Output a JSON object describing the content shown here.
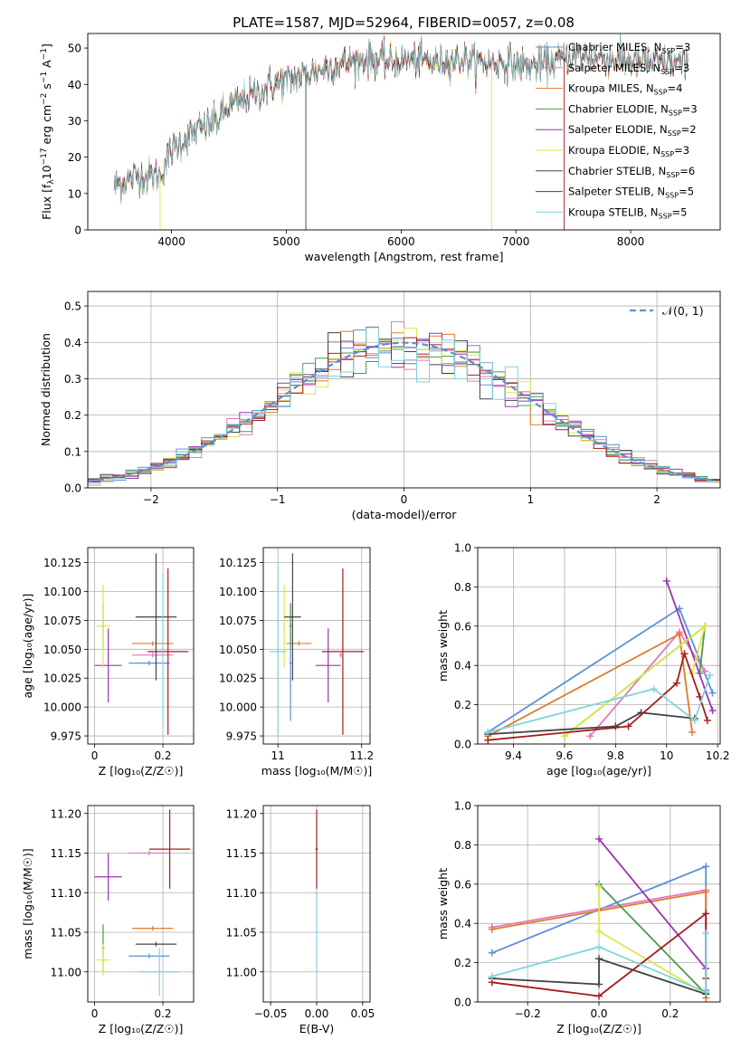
{
  "figure_title": "PLATE=1587, MJD=52964, FIBERID=0057, z=0.08",
  "colors": {
    "chabrier_miles": "#5b8fd9",
    "salpeter_miles": "#e377c2",
    "kroupa_miles": "#e07b2a",
    "chabrier_elodie": "#4a9a4a",
    "salpeter_elodie": "#9a34b0",
    "kroupa_elodie": "#d9e84a",
    "chabrier_stelib": "#444444",
    "salpeter_stelib": "#a81c1c",
    "kroupa_stelib": "#7fd3dc"
  },
  "legend_entries": [
    {
      "key": "chabrier_miles",
      "pre": "Chabrier MILES, N",
      "sub": "SSP",
      "post": "=3"
    },
    {
      "key": "salpeter_miles",
      "pre": "Salpeter MILES, N",
      "sub": "SSP",
      "post": "=3"
    },
    {
      "key": "kroupa_miles",
      "pre": "Kroupa MILES, N",
      "sub": "SSP",
      "post": "=4"
    },
    {
      "key": "chabrier_elodie",
      "pre": "Chabrier ELODIE, N",
      "sub": "SSP",
      "post": "=3"
    },
    {
      "key": "salpeter_elodie",
      "pre": "Salpeter ELODIE, N",
      "sub": "SSP",
      "post": "=2"
    },
    {
      "key": "kroupa_elodie",
      "pre": "Kroupa ELODIE, N",
      "sub": "SSP",
      "post": "=3"
    },
    {
      "key": "chabrier_stelib",
      "pre": "Chabrier STELIB, N",
      "sub": "SSP",
      "post": "=6"
    },
    {
      "key": "salpeter_stelib",
      "pre": "Salpeter STELIB, N",
      "sub": "SSP",
      "post": "=5"
    },
    {
      "key": "kroupa_stelib",
      "pre": "Kroupa STELIB, N",
      "sub": "SSP",
      "post": "=5"
    }
  ],
  "chart_data": [
    {
      "id": "spectrum",
      "type": "line",
      "title": "PLATE=1587, MJD=52964, FIBERID=0057, z=0.08",
      "xlabel": "wavelength [Angstrom, rest frame]",
      "ylabel_parts": {
        "a": "Flux [f",
        "b": "λ",
        "c": "10",
        "d": "−17",
        "e": " erg cm",
        "f": "−2",
        "g": " s",
        "h": "−1",
        "i": " A",
        "j": "−1",
        "k": "]"
      },
      "xlim": [
        3270,
        8780
      ],
      "ylim": [
        0,
        54
      ],
      "xticks": [
        4000,
        5000,
        6000,
        7000,
        8000
      ],
      "yticks": [
        0,
        10,
        20,
        30,
        40,
        50
      ],
      "continuum": [
        [
          3500,
          12
        ],
        [
          3700,
          15
        ],
        [
          3900,
          15
        ],
        [
          4000,
          22
        ],
        [
          4200,
          27
        ],
        [
          4400,
          30
        ],
        [
          4500,
          34
        ],
        [
          4700,
          37
        ],
        [
          4900,
          40
        ],
        [
          5100,
          42
        ],
        [
          5300,
          44
        ],
        [
          5500,
          46
        ],
        [
          5700,
          47
        ],
        [
          5900,
          46
        ],
        [
          6100,
          47
        ],
        [
          6300,
          46
        ],
        [
          6500,
          47
        ],
        [
          6700,
          46
        ],
        [
          6900,
          46
        ],
        [
          7100,
          45
        ],
        [
          7300,
          46
        ],
        [
          7500,
          48
        ],
        [
          7800,
          47
        ],
        [
          8100,
          46
        ],
        [
          8400,
          46
        ],
        [
          8500,
          45
        ]
      ],
      "x_range": [
        3500,
        8500
      ],
      "grid": false
    },
    {
      "id": "residuals",
      "type": "histogram",
      "xlabel": "(data-model)/error",
      "ylabel": "Normed distribution",
      "xlim": [
        -2.5,
        2.5
      ],
      "ylim": [
        0,
        0.54
      ],
      "xticks": [
        -2,
        -1,
        0,
        1,
        2
      ],
      "yticks": [
        0.0,
        0.1,
        0.2,
        0.3,
        0.4,
        0.5
      ],
      "bin_width": 0.1,
      "reference_label": "𝒩(0, 1)",
      "grid": true,
      "legend_position": "upper right"
    },
    {
      "id": "age_vs_Z",
      "type": "scatter",
      "xlabel": "Z [log₁₀(Z/Z☉)]",
      "ylabel": "age  [log₁₀(age/yr)]",
      "xlim": [
        -0.02,
        0.29
      ],
      "ylim": [
        9.968,
        10.138
      ],
      "xticks": [
        0.0,
        0.2
      ],
      "yticks": [
        9.975,
        10.0,
        10.025,
        10.05,
        10.075,
        10.1,
        10.125
      ],
      "ytick_labels": [
        "9.975",
        "10.000",
        "10.025",
        "10.050",
        "10.075",
        "10.100",
        "10.125"
      ],
      "points": [
        {
          "key": "chabrier_miles",
          "x": 0.16,
          "y": 10.038,
          "xerr": 0.06,
          "yerr": 0.0
        },
        {
          "key": "salpeter_miles",
          "x": 0.17,
          "y": 10.045,
          "xerr": 0.06,
          "yerr": 0.0
        },
        {
          "key": "kroupa_miles",
          "x": 0.17,
          "y": 10.055,
          "xerr": 0.06,
          "yerr": 0.0
        },
        {
          "key": "chabrier_elodie",
          "x": 0.025,
          "y": 10.07,
          "xerr": 0.0,
          "yerr": 0.02
        },
        {
          "key": "salpeter_elodie",
          "x": 0.04,
          "y": 10.036,
          "xerr": 0.04,
          "yerr": 0.032
        },
        {
          "key": "kroupa_elodie",
          "x": 0.025,
          "y": 10.07,
          "xerr": 0.02,
          "yerr": 0.036
        },
        {
          "key": "chabrier_stelib",
          "x": 0.18,
          "y": 10.078,
          "xerr": 0.06,
          "yerr": 0.055
        },
        {
          "key": "salpeter_stelib",
          "x": 0.215,
          "y": 10.048,
          "xerr": 0.06,
          "yerr": 0.072
        },
        {
          "key": "kroupa_stelib",
          "x": 0.2,
          "y": 10.05,
          "xerr": 0.0,
          "yerr": 0.066
        }
      ],
      "grid": true
    },
    {
      "id": "age_vs_mass",
      "type": "scatter",
      "xlabel": "mass [log₁₀(M/M☉)]",
      "ylabel": "",
      "xlim": [
        10.965,
        11.22
      ],
      "ylim": [
        9.968,
        10.138
      ],
      "xticks": [
        11.0,
        11.2
      ],
      "yticks": [
        9.975,
        10.0,
        10.025,
        10.05,
        10.075,
        10.1,
        10.125
      ],
      "ytick_labels": [
        "9.975",
        "10.000",
        "10.025",
        "10.050",
        "10.075",
        "10.100",
        "10.125"
      ],
      "points": [
        {
          "key": "chabrier_miles",
          "x": 11.03,
          "y": 10.038,
          "xerr": 0.0,
          "yerr": 0.05
        },
        {
          "key": "salpeter_miles",
          "x": 11.15,
          "y": 10.045,
          "xerr": 0.0,
          "yerr": 0.0
        },
        {
          "key": "kroupa_miles",
          "x": 11.05,
          "y": 10.055,
          "xerr": 0.03,
          "yerr": 0.0
        },
        {
          "key": "chabrier_elodie",
          "x": 11.03,
          "y": 10.07,
          "xerr": 0.0,
          "yerr": 0.02
        },
        {
          "key": "salpeter_elodie",
          "x": 11.12,
          "y": 10.036,
          "xerr": 0.03,
          "yerr": 0.032
        },
        {
          "key": "kroupa_elodie",
          "x": 11.015,
          "y": 10.07,
          "xerr": 0.0,
          "yerr": 0.036
        },
        {
          "key": "chabrier_stelib",
          "x": 11.035,
          "y": 10.078,
          "xerr": 0.02,
          "yerr": 0.055
        },
        {
          "key": "salpeter_stelib",
          "x": 11.155,
          "y": 10.048,
          "xerr": 0.05,
          "yerr": 0.072
        },
        {
          "key": "kroupa_stelib",
          "x": 11.0,
          "y": 10.048,
          "xerr": 0.02,
          "yerr": 0.075
        }
      ],
      "grid": true
    },
    {
      "id": "weight_vs_age",
      "type": "line",
      "xlabel": "age  [log₁₀(age/yr)]",
      "ylabel": "mass weight",
      "xlim": [
        9.26,
        10.21
      ],
      "ylim": [
        0,
        1.0
      ],
      "xticks": [
        9.4,
        9.6,
        9.8,
        10.0,
        10.2
      ],
      "yticks": [
        0.0,
        0.2,
        0.4,
        0.6,
        0.8,
        1.0
      ],
      "series": [
        {
          "key": "chabrier_miles",
          "points": [
            [
              9.3,
              0.06
            ],
            [
              10.05,
              0.69
            ],
            [
              10.18,
              0.26
            ]
          ]
        },
        {
          "key": "salpeter_miles",
          "points": [
            [
              9.7,
              0.04
            ],
            [
              10.05,
              0.57
            ],
            [
              10.15,
              0.37
            ]
          ]
        },
        {
          "key": "kroupa_miles",
          "points": [
            [
              9.3,
              0.04
            ],
            [
              10.05,
              0.56
            ],
            [
              10.1,
              0.06
            ]
          ]
        },
        {
          "key": "chabrier_elodie",
          "points": [
            [
              9.6,
              0.04
            ],
            [
              10.15,
              0.6
            ],
            [
              10.13,
              0.36
            ]
          ]
        },
        {
          "key": "salpeter_elodie",
          "points": [
            [
              10.0,
              0.83
            ],
            [
              10.18,
              0.17
            ]
          ]
        },
        {
          "key": "kroupa_elodie",
          "points": [
            [
              9.6,
              0.04
            ],
            [
              10.15,
              0.6
            ],
            [
              10.1,
              0.36
            ]
          ]
        },
        {
          "key": "chabrier_stelib",
          "points": [
            [
              9.3,
              0.05
            ],
            [
              9.8,
              0.09
            ],
            [
              9.9,
              0.16
            ],
            [
              10.11,
              0.13
            ]
          ]
        },
        {
          "key": "salpeter_stelib",
          "points": [
            [
              9.3,
              0.02
            ],
            [
              9.85,
              0.09
            ],
            [
              10.04,
              0.31
            ],
            [
              10.07,
              0.46
            ],
            [
              10.13,
              0.24
            ],
            [
              10.16,
              0.12
            ]
          ]
        },
        {
          "key": "kroupa_stelib",
          "points": [
            [
              9.3,
              0.06
            ],
            [
              9.95,
              0.28
            ],
            [
              10.11,
              0.12
            ],
            [
              10.17,
              0.35
            ]
          ]
        }
      ],
      "grid": true
    },
    {
      "id": "mass_vs_Z",
      "type": "scatter",
      "xlabel": "Z [log₁₀(Z/Z☉)]",
      "ylabel": "mass [log₁₀(M/M☉)]",
      "xlim": [
        -0.02,
        0.29
      ],
      "ylim": [
        10.962,
        11.21
      ],
      "xticks": [
        0.0,
        0.2
      ],
      "yticks": [
        11.0,
        11.05,
        11.1,
        11.15,
        11.2
      ],
      "ytick_labels": [
        "11.00",
        "11.05",
        "11.10",
        "11.15",
        "11.20"
      ],
      "points": [
        {
          "key": "chabrier_miles",
          "x": 0.16,
          "y": 11.02,
          "xerr": 0.06,
          "yerr": 0.0
        },
        {
          "key": "salpeter_miles",
          "x": 0.16,
          "y": 11.15,
          "xerr": 0.06,
          "yerr": 0.0
        },
        {
          "key": "kroupa_miles",
          "x": 0.17,
          "y": 11.055,
          "xerr": 0.06,
          "yerr": 0.0
        },
        {
          "key": "chabrier_elodie",
          "x": 0.025,
          "y": 11.03,
          "xerr": 0.0,
          "yerr": 0.03
        },
        {
          "key": "salpeter_elodie",
          "x": 0.04,
          "y": 11.12,
          "xerr": 0.04,
          "yerr": 0.03
        },
        {
          "key": "kroupa_elodie",
          "x": 0.025,
          "y": 11.015,
          "xerr": 0.02,
          "yerr": 0.02
        },
        {
          "key": "chabrier_stelib",
          "x": 0.18,
          "y": 11.035,
          "xerr": 0.06,
          "yerr": 0.0
        },
        {
          "key": "salpeter_stelib",
          "x": 0.22,
          "y": 11.155,
          "xerr": 0.06,
          "yerr": 0.05
        },
        {
          "key": "kroupa_stelib",
          "x": 0.19,
          "y": 11.0,
          "xerr": 0.06,
          "yerr": 0.03
        }
      ],
      "grid": true
    },
    {
      "id": "mass_vs_ebv",
      "type": "scatter",
      "xlabel": "E(B-V)",
      "ylabel": "",
      "xlim": [
        -0.058,
        0.058
      ],
      "ylim": [
        10.962,
        11.21
      ],
      "xticks": [
        -0.05,
        0.0,
        0.05
      ],
      "xtick_labels": [
        "−0.05",
        "0.00",
        "0.05"
      ],
      "yticks": [
        11.0,
        11.05,
        11.1,
        11.15,
        11.2
      ],
      "ytick_labels": [
        "11.00",
        "11.05",
        "11.10",
        "11.15",
        "11.20"
      ],
      "points": [
        {
          "key": "kroupa_stelib",
          "x": 0.0,
          "y": 11.05,
          "xerr": 0.0,
          "yerr": 0.05
        },
        {
          "key": "salpeter_stelib",
          "x": 0.0,
          "y": 11.155,
          "xerr": 0.0,
          "yerr": 0.05
        }
      ],
      "grid": true
    },
    {
      "id": "weight_vs_Z",
      "type": "line",
      "xlabel": "Z [log₁₀(Z/Z☉)]",
      "ylabel": "mass weight",
      "xlim": [
        -0.34,
        0.34
      ],
      "ylim": [
        0,
        1.0
      ],
      "xticks": [
        -0.2,
        0.0,
        0.2
      ],
      "xtick_labels": [
        "−0.2",
        "0.0",
        "0.2"
      ],
      "yticks": [
        0.0,
        0.2,
        0.4,
        0.6,
        0.8,
        1.0
      ],
      "series": [
        {
          "key": "chabrier_miles",
          "points": [
            [
              -0.3,
              0.25
            ],
            [
              0.3,
              0.69
            ],
            [
              0.3,
              0.06
            ]
          ]
        },
        {
          "key": "salpeter_miles",
          "points": [
            [
              -0.3,
              0.38
            ],
            [
              0.3,
              0.57
            ],
            [
              0.3,
              0.05
            ]
          ]
        },
        {
          "key": "kroupa_miles",
          "points": [
            [
              -0.3,
              0.37
            ],
            [
              0.3,
              0.56
            ],
            [
              0.3,
              0.02
            ]
          ]
        },
        {
          "key": "chabrier_elodie",
          "points": [
            [
              0.0,
              0.6
            ],
            [
              0.3,
              0.04
            ]
          ]
        },
        {
          "key": "salpeter_elodie",
          "points": [
            [
              0.0,
              0.83
            ],
            [
              0.3,
              0.17
            ]
          ]
        },
        {
          "key": "kroupa_elodie",
          "points": [
            [
              0.0,
              0.59
            ],
            [
              0.0,
              0.36
            ],
            [
              0.3,
              0.04
            ]
          ]
        },
        {
          "key": "chabrier_stelib",
          "points": [
            [
              -0.3,
              0.12
            ],
            [
              0.0,
              0.09
            ],
            [
              0.0,
              0.22
            ],
            [
              0.3,
              0.04
            ]
          ]
        },
        {
          "key": "salpeter_stelib",
          "points": [
            [
              -0.3,
              0.1
            ],
            [
              0.0,
              0.03
            ],
            [
              0.3,
              0.45
            ],
            [
              0.3,
              0.12
            ]
          ]
        },
        {
          "key": "kroupa_stelib",
          "points": [
            [
              -0.3,
              0.13
            ],
            [
              0.0,
              0.28
            ],
            [
              0.3,
              0.05
            ],
            [
              0.3,
              0.35
            ]
          ]
        }
      ],
      "grid": true
    }
  ]
}
